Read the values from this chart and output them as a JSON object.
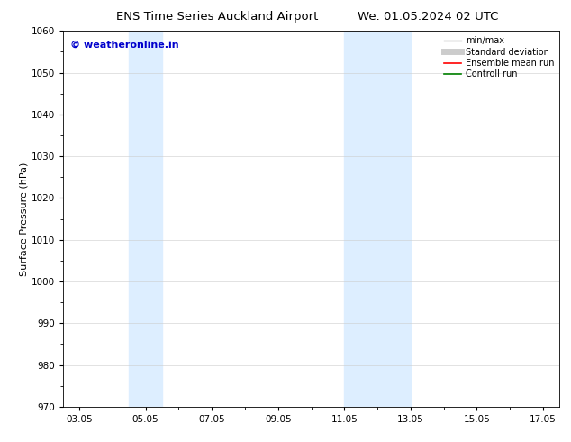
{
  "title_left": "ENS Time Series Auckland Airport",
  "title_right": "We. 01.05.2024 02 UTC",
  "ylabel": "Surface Pressure (hPa)",
  "ylim": [
    970,
    1060
  ],
  "yticks": [
    970,
    980,
    990,
    1000,
    1010,
    1020,
    1030,
    1040,
    1050,
    1060
  ],
  "xlim_start": 2.5,
  "xlim_end": 17.5,
  "xtick_labels": [
    "03.05",
    "05.05",
    "07.05",
    "09.05",
    "11.05",
    "13.05",
    "15.05",
    "17.05"
  ],
  "xtick_positions": [
    3,
    5,
    7,
    9,
    11,
    13,
    15,
    17
  ],
  "shaded_bands": [
    {
      "x_start": 4.5,
      "x_end": 5.5
    },
    {
      "x_start": 11.0,
      "x_end": 13.0
    }
  ],
  "shaded_color": "#ddeeff",
  "watermark_text": "© weatheronline.in",
  "watermark_color": "#0000cc",
  "watermark_fontsize": 8,
  "legend_entries": [
    {
      "label": "min/max",
      "color": "#aaaaaa",
      "lw": 1.0
    },
    {
      "label": "Standard deviation",
      "color": "#cccccc",
      "lw": 5
    },
    {
      "label": "Ensemble mean run",
      "color": "red",
      "lw": 1.2
    },
    {
      "label": "Controll run",
      "color": "green",
      "lw": 1.2
    }
  ],
  "bg_color": "#ffffff",
  "grid_color": "#cccccc",
  "title_fontsize": 9.5,
  "axis_label_fontsize": 8,
  "tick_fontsize": 7.5
}
